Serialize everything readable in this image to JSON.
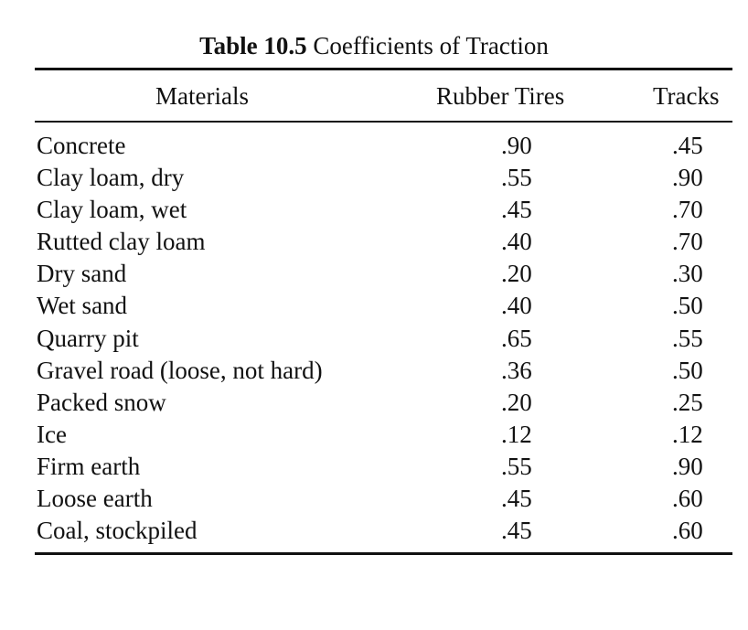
{
  "table": {
    "caption_label": "Table 10.5",
    "caption_title": "Coefficients of Traction",
    "columns": [
      "Materials",
      "Rubber Tires",
      "Tracks"
    ],
    "rows": [
      {
        "material": "Concrete",
        "rubber_tires": ".90",
        "tracks": ".45"
      },
      {
        "material": "Clay loam, dry",
        "rubber_tires": ".55",
        "tracks": ".90"
      },
      {
        "material": "Clay loam, wet",
        "rubber_tires": ".45",
        "tracks": ".70"
      },
      {
        "material": "Rutted clay loam",
        "rubber_tires": ".40",
        "tracks": ".70"
      },
      {
        "material": "Dry sand",
        "rubber_tires": ".20",
        "tracks": ".30"
      },
      {
        "material": "Wet sand",
        "rubber_tires": ".40",
        "tracks": ".50"
      },
      {
        "material": "Quarry pit",
        "rubber_tires": ".65",
        "tracks": ".55"
      },
      {
        "material": "Gravel road (loose, not hard)",
        "rubber_tires": ".36",
        "tracks": ".50"
      },
      {
        "material": "Packed snow",
        "rubber_tires": ".20",
        "tracks": ".25"
      },
      {
        "material": "Ice",
        "rubber_tires": ".12",
        "tracks": ".12"
      },
      {
        "material": "Firm earth",
        "rubber_tires": ".55",
        "tracks": ".90"
      },
      {
        "material": "Loose earth",
        "rubber_tires": ".45",
        "tracks": ".60"
      },
      {
        "material": "Coal, stockpiled",
        "rubber_tires": ".45",
        "tracks": ".60"
      }
    ]
  }
}
